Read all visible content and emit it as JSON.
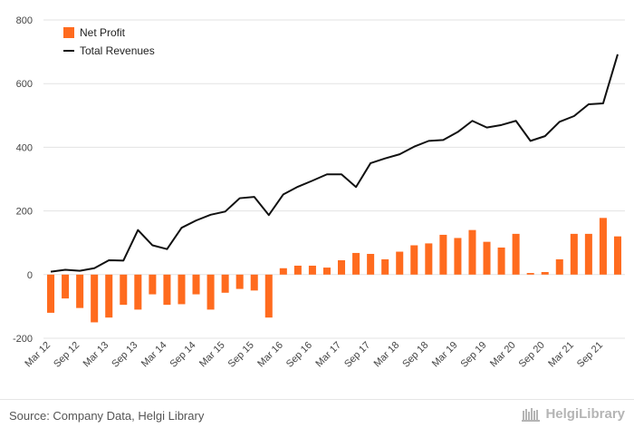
{
  "chart_data": {
    "type": "bar",
    "title": "",
    "xlabel": "",
    "ylabel": "",
    "ylim": [
      -200,
      800
    ],
    "yticks": [
      -200,
      0,
      200,
      400,
      600,
      800
    ],
    "grid": true,
    "legend_position": "top-left",
    "categories": [
      "Mar 12",
      "Jun 12",
      "Sep 12",
      "Dec 12",
      "Mar 13",
      "Jun 13",
      "Sep 13",
      "Dec 13",
      "Mar 14",
      "Jun 14",
      "Sep 14",
      "Dec 14",
      "Mar 15",
      "Jun 15",
      "Sep 15",
      "Dec 15",
      "Mar 16",
      "Jun 16",
      "Sep 16",
      "Dec 16",
      "Mar 17",
      "Jun 17",
      "Sep 17",
      "Dec 17",
      "Mar 18",
      "Jun 18",
      "Sep 18",
      "Dec 18",
      "Mar 19",
      "Jun 19",
      "Sep 19",
      "Dec 19",
      "Mar 20",
      "Jun 20",
      "Sep 20",
      "Dec 20",
      "Mar 21",
      "Jun 21",
      "Sep 21",
      "Dec 21"
    ],
    "tick_labels": [
      "Mar 12",
      "Sep 12",
      "Mar 13",
      "Sep 13",
      "Mar 14",
      "Sep 14",
      "Mar 15",
      "Sep 15",
      "Mar 16",
      "Sep 16",
      "Mar 17",
      "Sep 17",
      "Mar 18",
      "Sep 18",
      "Mar 19",
      "Sep 19",
      "Mar 20",
      "Sep 20",
      "Mar 21",
      "Sep 21"
    ],
    "series": [
      {
        "name": "Net Profit",
        "kind": "bar",
        "color": "#ff6b1e",
        "values": [
          -120,
          -75,
          -105,
          -150,
          -135,
          -95,
          -110,
          -62,
          -95,
          -93,
          -62,
          -110,
          -57,
          -45,
          -50,
          -135,
          20,
          28,
          28,
          22,
          45,
          68,
          65,
          48,
          72,
          92,
          98,
          125,
          115,
          140,
          103,
          85,
          128,
          5,
          8,
          48,
          128,
          128,
          178,
          120
        ]
      },
      {
        "name": "Total Revenues",
        "kind": "line",
        "color": "#111111",
        "values": [
          9,
          15,
          12,
          20,
          45,
          44,
          140,
          92,
          80,
          147,
          170,
          188,
          198,
          240,
          244,
          187,
          252,
          276,
          295,
          315,
          315,
          275,
          350,
          365,
          378,
          402,
          420,
          423,
          448,
          483,
          462,
          470,
          483,
          420,
          435,
          480,
          498,
          535,
          538,
          692
        ]
      }
    ]
  },
  "footer": {
    "source": "Source: Company Data, Helgi Library",
    "brand": "HelgiLibrary"
  }
}
